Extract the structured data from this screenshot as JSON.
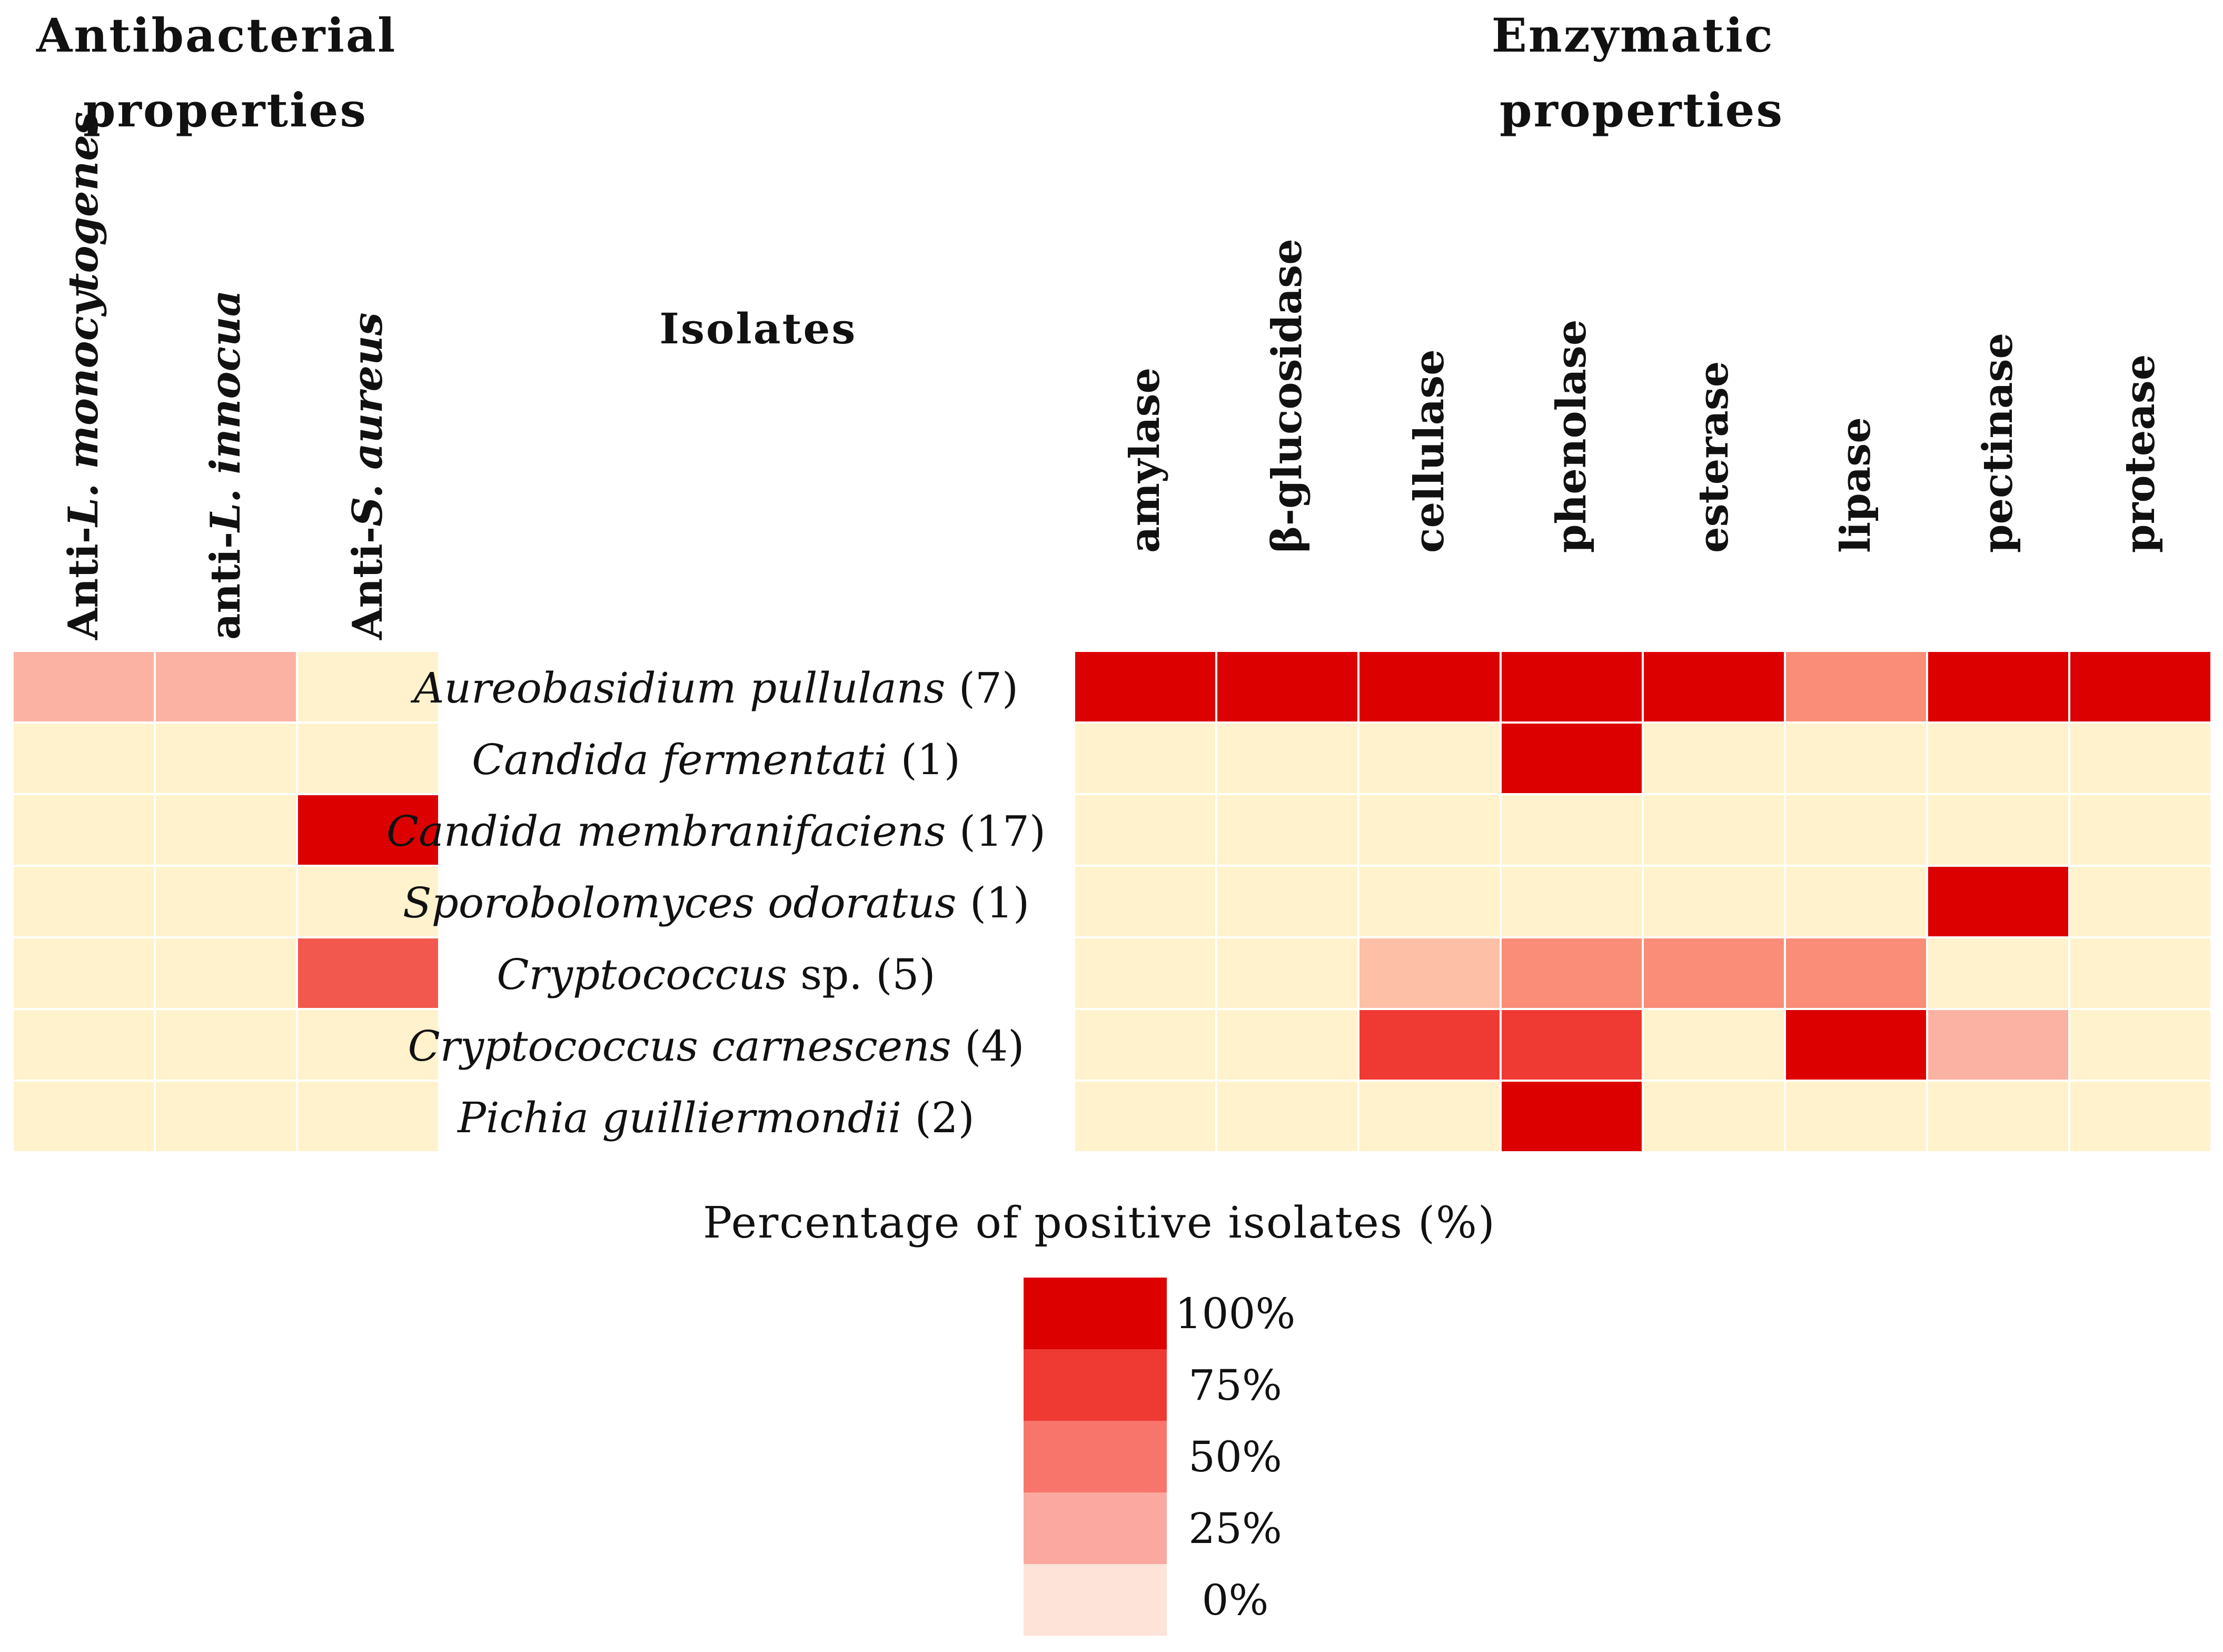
{
  "chart_data": {
    "type": "heatmap",
    "groups": {
      "antibacterial": "Antibacterial properties",
      "isolates": "Isolates",
      "enzymatic": "Enzymatic properties"
    },
    "antibacterial_columns": [
      {
        "prefix": "Anti-",
        "italic": "L. monocytogenes"
      },
      {
        "prefix": "anti-",
        "italic": "L. innocua"
      },
      {
        "prefix": "Anti-",
        "italic": "S. aureus"
      }
    ],
    "enzymatic_columns": [
      "amylase",
      "β-glucosidase",
      "cellulase",
      "phenolase",
      "esterase",
      "lipase",
      "pectinase",
      "protease"
    ],
    "rows": [
      {
        "species": "Aureobasidium pullulans",
        "suffix": "(7)"
      },
      {
        "species": "Candida fermentati",
        "suffix": "(1)"
      },
      {
        "species": "Candida membranifaciens",
        "suffix": "(17)"
      },
      {
        "species": "Sporobolomyces odoratus",
        "suffix": "(1)"
      },
      {
        "species": "Cryptococcus",
        "suffix": "sp. (5)"
      },
      {
        "species": "Cryptococcus carnescens",
        "suffix": "(4)"
      },
      {
        "species": "Pichia guilliermondii",
        "suffix": "(2)"
      }
    ],
    "antibacterial_values": [
      [
        29,
        29,
        0
      ],
      [
        0,
        0,
        0
      ],
      [
        0,
        0,
        100
      ],
      [
        0,
        0,
        0
      ],
      [
        0,
        0,
        60
      ],
      [
        0,
        0,
        0
      ],
      [
        0,
        0,
        0
      ]
    ],
    "enzymatic_values": [
      [
        100,
        100,
        100,
        100,
        100,
        43,
        100,
        100
      ],
      [
        0,
        0,
        0,
        100,
        0,
        0,
        0,
        0
      ],
      [
        0,
        0,
        0,
        0,
        0,
        0,
        0,
        0
      ],
      [
        0,
        0,
        0,
        0,
        0,
        0,
        100,
        0
      ],
      [
        0,
        0,
        20,
        40,
        40,
        40,
        0,
        0
      ],
      [
        0,
        0,
        75,
        75,
        0,
        100,
        25,
        0
      ],
      [
        0,
        0,
        0,
        100,
        0,
        0,
        0,
        0
      ]
    ],
    "legend": {
      "title": "Percentage of positive isolates (%)",
      "ticks": [
        "100%",
        "75%",
        "50%",
        "25%",
        "0%"
      ],
      "colors": [
        "#dc0000",
        "#ef3a34",
        "#f7756b",
        "#fba9a0",
        "#fde3d8"
      ]
    },
    "zero_cell_color": "#fff2cc",
    "scale_colors": {
      "100": "#dc0000",
      "75": "#ef3a34",
      "60": "#f3584e",
      "43": "#f98d78",
      "40": "#f98d78",
      "29": "#fcb2a2",
      "25": "#fcb2a2",
      "20": "#fdbfa6"
    }
  }
}
